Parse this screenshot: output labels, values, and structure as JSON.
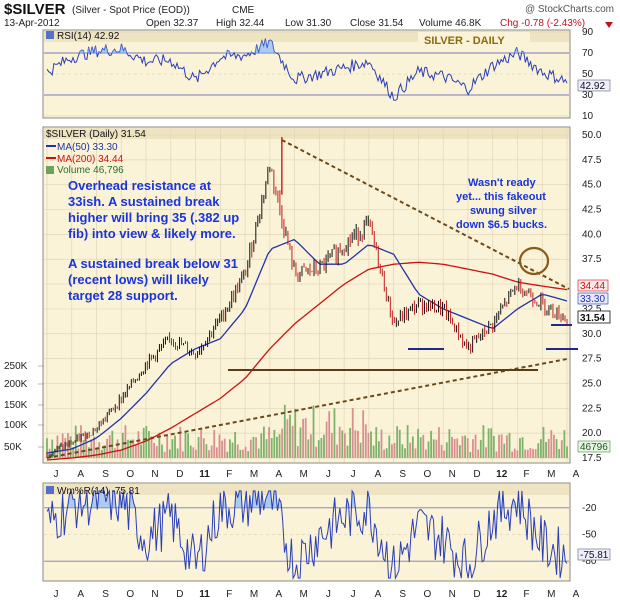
{
  "header": {
    "symbol": "$SILVER",
    "name": "(Silver - Spot Price (EOD))",
    "exchange": "CME",
    "watermark": "@ StockCharts.com",
    "date": "13-Apr-2012",
    "open": "Open 32.37",
    "high": "High 32.44",
    "low": "Low 31.30",
    "close": "Close 31.54",
    "volume": "Volume 46.8K",
    "chg": "Chg -0.78 (-2.43%)"
  },
  "rsi_panel": {
    "label": "RSI(14) 42.92",
    "badge": "SILVER - DAILY",
    "current": "42.92",
    "ticks": [
      "90",
      "70",
      "50",
      "30",
      "10"
    ]
  },
  "price_panel": {
    "label": "$SILVER (Daily) 31.54",
    "ma50": "MA(50) 33.30",
    "ma200": "MA(200) 34.44",
    "volume": "Volume 46,796",
    "price_ticks": [
      "50.0",
      "47.5",
      "45.0",
      "42.5",
      "40.0",
      "37.5",
      "35.0",
      "32.5",
      "30.0",
      "27.5",
      "25.0",
      "22.5",
      "20.0",
      "17.5"
    ],
    "volume_ticks": [
      "250K",
      "200K",
      "150K",
      "100K",
      "50K"
    ],
    "tag_ma200": "34.44",
    "tag_ma50": "33.30",
    "tag_price": "31.54",
    "tag_volume": "46796",
    "annotation_1": [
      "Overhead resistance at",
      "33ish. A sustained break",
      "higher will bring 35 (.382 up",
      "fib) into view & likely more."
    ],
    "annotation_2": [
      "A sustained break below 31",
      "(recent lows) will likely",
      "target 28 support."
    ],
    "annotation_3": [
      "Wasn't ready",
      "yet... this fakeout",
      "swung silver",
      "down $6.5 bucks."
    ]
  },
  "wr_panel": {
    "label": "Wm%R(14) -75.81",
    "current": "-75.81",
    "ticks": [
      "-20",
      "-50",
      "-80"
    ]
  },
  "x_axis": {
    "labels": [
      "J",
      "A",
      "S",
      "O",
      "N",
      "D",
      "11",
      "F",
      "M",
      "A",
      "M",
      "J",
      "J",
      "A",
      "S",
      "O",
      "N",
      "D",
      "12",
      "F",
      "M",
      "A"
    ]
  },
  "colors": {
    "price": "#111111",
    "ma50": "#2233aa",
    "ma200": "#cc1111",
    "trendline": "#6b4a1a",
    "annotation": "#1a35d8",
    "panel_bg": "#fbf3d8",
    "header_bg": "#efe4c2"
  },
  "chart_data": [
    {
      "type": "line",
      "title": "$SILVER (Daily) 31.54",
      "x": [
        "2010-07",
        "2010-08",
        "2010-09",
        "2010-10",
        "2010-11",
        "2010-12",
        "2011-01",
        "2011-02",
        "2011-03",
        "2011-04",
        "2011-05",
        "2011-06",
        "2011-07",
        "2011-08",
        "2011-09",
        "2011-10",
        "2011-11",
        "2011-12",
        "2012-01",
        "2012-02",
        "2012-03",
        "2012-04"
      ],
      "series": [
        {
          "name": "$SILVER",
          "values": [
            18.0,
            19.0,
            20.5,
            23.5,
            27.0,
            29.5,
            28.0,
            31.5,
            36.0,
            47.0,
            36.0,
            36.5,
            39.0,
            41.0,
            31.0,
            33.0,
            32.5,
            28.5,
            31.0,
            35.0,
            33.0,
            31.54
          ]
        },
        {
          "name": "MA(50)",
          "values": [
            18.0,
            18.4,
            19.5,
            21.5,
            24.0,
            27.0,
            28.5,
            29.5,
            32.5,
            38.5,
            39.5,
            37.0,
            37.0,
            39.0,
            38.0,
            34.0,
            32.5,
            31.5,
            30.5,
            32.5,
            34.0,
            33.3
          ]
        },
        {
          "name": "MA(200)",
          "values": [
            17.3,
            17.5,
            17.8,
            18.3,
            19.2,
            20.5,
            22.0,
            23.5,
            25.5,
            28.5,
            31.0,
            33.0,
            35.0,
            36.5,
            37.0,
            37.2,
            37.0,
            36.5,
            36.0,
            35.2,
            34.8,
            34.44
          ]
        }
      ],
      "ylim": [
        17.5,
        50.0
      ],
      "grid": true
    },
    {
      "type": "line",
      "title": "RSI(14) 42.92",
      "x": [
        "2010-07",
        "2010-08",
        "2010-09",
        "2010-10",
        "2010-11",
        "2010-12",
        "2011-01",
        "2011-02",
        "2011-03",
        "2011-04",
        "2011-05",
        "2011-06",
        "2011-07",
        "2011-08",
        "2011-09",
        "2011-10",
        "2011-11",
        "2011-12",
        "2012-01",
        "2012-02",
        "2012-03",
        "2012-04"
      ],
      "series": [
        {
          "name": "RSI(14)",
          "values": [
            52,
            66,
            72,
            74,
            62,
            63,
            44,
            66,
            68,
            80,
            45,
            50,
            56,
            62,
            28,
            52,
            48,
            36,
            58,
            70,
            52,
            42.92
          ]
        }
      ],
      "ylim": [
        10,
        90
      ]
    },
    {
      "type": "line",
      "title": "Wm%R(14) -75.81",
      "x": [
        "2010-07",
        "2010-08",
        "2010-09",
        "2010-10",
        "2010-11",
        "2010-12",
        "2011-01",
        "2011-02",
        "2011-03",
        "2011-04",
        "2011-05",
        "2011-06",
        "2011-07",
        "2011-08",
        "2011-09",
        "2011-10",
        "2011-11",
        "2011-12",
        "2012-01",
        "2012-02",
        "2012-03",
        "2012-04"
      ],
      "series": [
        {
          "name": "Wm%R(14)",
          "values": [
            -40,
            -15,
            -10,
            -12,
            -55,
            -30,
            -85,
            -20,
            -15,
            -5,
            -85,
            -50,
            -30,
            -20,
            -90,
            -40,
            -55,
            -85,
            -30,
            -10,
            -60,
            -75.81
          ]
        }
      ],
      "ylim": [
        -100,
        0
      ]
    }
  ]
}
